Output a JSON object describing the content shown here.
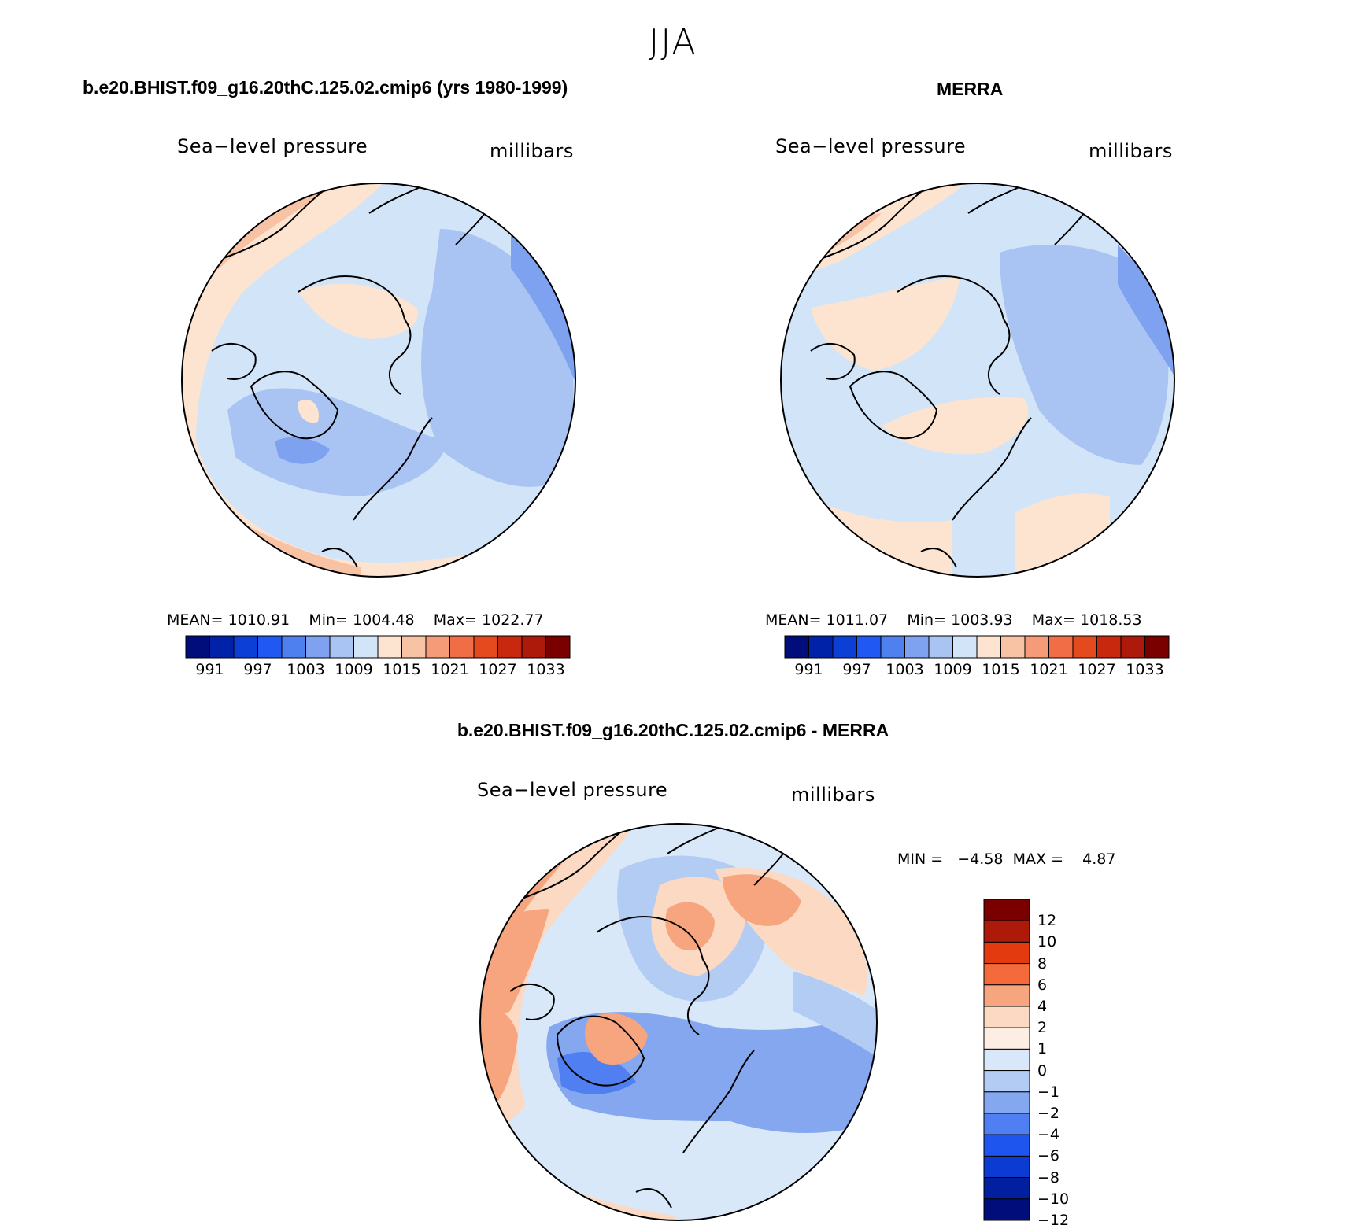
{
  "title": "JJA",
  "panels": [
    {
      "case": "b.e20.BHIST.f09_g16.20thC.125.02.cmip6 (yrs 1980-1999)",
      "variable": "Sea−level pressure",
      "units": "millibars",
      "stats": {
        "mean_label": "MEAN=",
        "mean": "1010.91",
        "min_label": "Min=",
        "min": "1004.48",
        "max_label": "Max=",
        "max": "1022.77"
      }
    },
    {
      "case": "MERRA",
      "variable": "Sea−level pressure",
      "units": "millibars",
      "stats": {
        "mean_label": "MEAN=",
        "mean": "1011.07",
        "min_label": "Min=",
        "min": "1003.93",
        "max_label": "Max=",
        "max": "1018.53"
      }
    }
  ],
  "abs_colorbar": {
    "colors": [
      "#000d7a",
      "#0022a8",
      "#0b3fd6",
      "#1f58f2",
      "#4f80f0",
      "#7ea2ef",
      "#a9c4f3",
      "#d2e4f8",
      "#fde4d0",
      "#f8c2a4",
      "#f59b77",
      "#f06d45",
      "#e44a1e",
      "#c8280e",
      "#ae1a0a",
      "#7a0000"
    ],
    "ticks": [
      "991",
      "997",
      "1003",
      "1009",
      "1015",
      "1021",
      "1027",
      "1033"
    ]
  },
  "diff": {
    "title": "b.e20.BHIST.f09_g16.20thC.125.02.cmip6 - MERRA",
    "variable": "Sea−level pressure",
    "units": "millibars",
    "stats": {
      "min_label": "MIN =",
      "min": "−4.58",
      "max_label": "MAX =",
      "max": "4.87"
    },
    "colors": [
      "#7a0000",
      "#ae1a0a",
      "#e33a10",
      "#f56a3a",
      "#f7a57f",
      "#fcd9c2",
      "#fdeee3",
      "#d8e8f8",
      "#b3ccf4",
      "#84a7ef",
      "#4f7ff0",
      "#1f55ef",
      "#0b3bd2",
      "#0020a0",
      "#000d7a"
    ],
    "ticks": [
      "12",
      "10",
      "8",
      "6",
      "4",
      "2",
      "1",
      "0",
      "−1",
      "−2",
      "−4",
      "−6",
      "−8",
      "−10",
      "−12"
    ]
  }
}
